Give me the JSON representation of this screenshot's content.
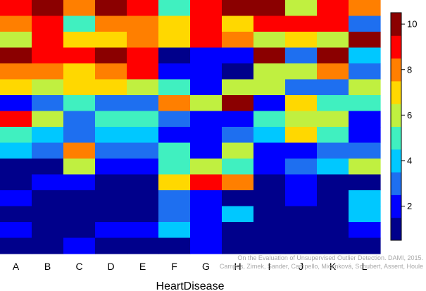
{
  "chart_data": {
    "type": "heatmap",
    "xlabel": "HeartDisease",
    "categories": [
      "A",
      "B",
      "C",
      "D",
      "E",
      "F",
      "G",
      "H",
      "I",
      "J",
      "K",
      "L"
    ],
    "colorbar": {
      "range": [
        0.5,
        10.5
      ],
      "ticks": [
        2,
        4,
        6,
        8,
        10
      ],
      "tick_labels": [
        "2",
        "4",
        "6",
        "8",
        "10"
      ],
      "colors": [
        "#00008b",
        "#0000ff",
        "#1e6ff0",
        "#00c8ff",
        "#40f0c0",
        "#c0f040",
        "#ffd800",
        "#ff7f00",
        "#ff0000",
        "#8b0000"
      ]
    },
    "matrix": [
      [
        9,
        10,
        8,
        10,
        9,
        5,
        9,
        10,
        10,
        6,
        9,
        8
      ],
      [
        8,
        9,
        5,
        8,
        8,
        7,
        9,
        7,
        9,
        9,
        9,
        3
      ],
      [
        6,
        9,
        7,
        7,
        8,
        7,
        9,
        8,
        6,
        7,
        6,
        10
      ],
      [
        10,
        9,
        9,
        10,
        9,
        1,
        2,
        2,
        10,
        3,
        10,
        4
      ],
      [
        8,
        8,
        7,
        8,
        9,
        2,
        2,
        1,
        6,
        6,
        8,
        3
      ],
      [
        7,
        6,
        7,
        7,
        6,
        5,
        2,
        6,
        6,
        3,
        3,
        6
      ],
      [
        2,
        3,
        5,
        3,
        3,
        8,
        6,
        10,
        2,
        7,
        5,
        5
      ],
      [
        9,
        6,
        3,
        5,
        5,
        3,
        2,
        2,
        5,
        6,
        6,
        2
      ],
      [
        5,
        4,
        3,
        4,
        4,
        2,
        2,
        3,
        4,
        7,
        5,
        2
      ],
      [
        4,
        3,
        8,
        3,
        3,
        5,
        2,
        6,
        2,
        2,
        3,
        3
      ],
      [
        1,
        1,
        6,
        2,
        2,
        5,
        6,
        5,
        2,
        3,
        4,
        6
      ],
      [
        1,
        2,
        2,
        1,
        1,
        7,
        9,
        8,
        1,
        2,
        1,
        1
      ],
      [
        2,
        1,
        1,
        1,
        1,
        3,
        2,
        1,
        1,
        2,
        1,
        4
      ],
      [
        1,
        1,
        1,
        1,
        1,
        3,
        2,
        4,
        1,
        1,
        1,
        4
      ],
      [
        2,
        1,
        1,
        2,
        2,
        4,
        2,
        1,
        1,
        1,
        1,
        2
      ],
      [
        1,
        1,
        2,
        1,
        1,
        1,
        2,
        1,
        1,
        1,
        1,
        1
      ]
    ]
  },
  "watermark": {
    "line1": "On the Evaluation of Unsupervised Outlier Detection. DAMI, 2015.",
    "line2": "Campos, Zimek, Sander, Campello, Micenková, Schubert, Assent, Houle"
  }
}
